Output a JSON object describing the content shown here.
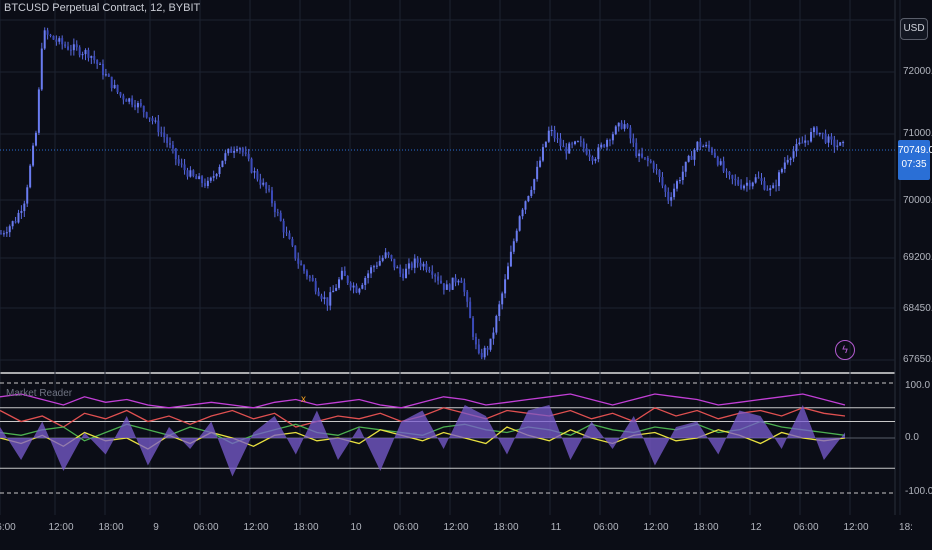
{
  "chart_data": [
    {
      "type": "candlestick",
      "title": "BTCUSD Perpetual Contract, 12, BYBIT",
      "currency": "USD",
      "current_price": "70749.0",
      "countdown": "07:35",
      "y_ticks": [
        "72000.0",
        "71000.0",
        "70000.0",
        "69200.0",
        "68450.0",
        "67650.0"
      ],
      "x_ticks": [
        "6:00",
        "12:00",
        "18:00",
        "9",
        "06:00",
        "12:00",
        "18:00",
        "10",
        "06:00",
        "12:00",
        "18:00",
        "11",
        "06:00",
        "12:00",
        "18:00",
        "12",
        "06:00",
        "12:00",
        "18:"
      ],
      "ylim": [
        67500,
        72700
      ],
      "path_points": [
        [
          0,
          69500
        ],
        [
          5,
          69700
        ],
        [
          8,
          70000
        ],
        [
          12,
          71000
        ],
        [
          14,
          72400
        ],
        [
          18,
          72300
        ],
        [
          22,
          72200
        ],
        [
          30,
          72100
        ],
        [
          35,
          71800
        ],
        [
          40,
          71500
        ],
        [
          45,
          71400
        ],
        [
          50,
          71200
        ],
        [
          55,
          70900
        ],
        [
          60,
          70500
        ],
        [
          65,
          70300
        ],
        [
          70,
          70200
        ],
        [
          75,
          70600
        ],
        [
          80,
          70800
        ],
        [
          85,
          70400
        ],
        [
          90,
          70100
        ],
        [
          95,
          69600
        ],
        [
          100,
          69100
        ],
        [
          105,
          68800
        ],
        [
          110,
          68500
        ],
        [
          115,
          68900
        ],
        [
          120,
          68700
        ],
        [
          125,
          69000
        ],
        [
          130,
          69200
        ],
        [
          135,
          68900
        ],
        [
          140,
          69100
        ],
        [
          145,
          69000
        ],
        [
          150,
          68700
        ],
        [
          155,
          68900
        ],
        [
          158,
          68300
        ],
        [
          161,
          67700
        ],
        [
          165,
          67900
        ],
        [
          170,
          68800
        ],
        [
          175,
          69800
        ],
        [
          180,
          70300
        ],
        [
          185,
          71000
        ],
        [
          190,
          70700
        ],
        [
          195,
          70800
        ],
        [
          200,
          70600
        ],
        [
          205,
          70900
        ],
        [
          210,
          71100
        ],
        [
          215,
          70600
        ],
        [
          220,
          70500
        ],
        [
          225,
          70000
        ],
        [
          230,
          70400
        ],
        [
          235,
          70800
        ],
        [
          240,
          70700
        ],
        [
          245,
          70300
        ],
        [
          250,
          70200
        ],
        [
          255,
          70300
        ],
        [
          260,
          70100
        ],
        [
          265,
          70600
        ],
        [
          270,
          70800
        ],
        [
          275,
          71000
        ],
        [
          280,
          70800
        ],
        [
          285,
          70750
        ]
      ]
    },
    {
      "type": "line",
      "title": "Market Reader",
      "y_ticks": [
        "100.0",
        "0.0",
        "-100.0"
      ],
      "ylim": [
        -110,
        110
      ],
      "series": [
        {
          "color": "#c23fd6",
          "values": [
            75,
            80,
            70,
            60,
            75,
            65,
            70,
            60,
            55,
            60,
            65,
            60,
            55,
            65,
            70,
            60,
            65,
            70,
            60,
            55,
            65,
            75,
            70,
            60,
            65,
            70,
            75,
            80,
            70,
            60,
            70,
            80,
            75,
            70,
            60,
            65,
            70,
            75,
            80,
            70,
            60
          ]
        },
        {
          "color": "#e05050",
          "values": [
            50,
            30,
            40,
            20,
            45,
            35,
            50,
            30,
            40,
            25,
            40,
            50,
            35,
            45,
            20,
            30,
            40,
            35,
            45,
            30,
            40,
            55,
            45,
            35,
            50,
            45,
            40,
            50,
            35,
            45,
            30,
            55,
            40,
            50,
            35,
            45,
            50,
            40,
            55,
            45,
            40
          ]
        },
        {
          "color": "#4caf50",
          "values": [
            10,
            5,
            15,
            20,
            -5,
            10,
            25,
            15,
            5,
            20,
            10,
            -10,
            5,
            15,
            25,
            10,
            5,
            20,
            15,
            10,
            5,
            20,
            25,
            15,
            10,
            20,
            15,
            5,
            25,
            15,
            10,
            20,
            15,
            25,
            10,
            15,
            30,
            20,
            15,
            10,
            5
          ]
        },
        {
          "color": "#e8e040",
          "values": [
            0,
            -10,
            5,
            -15,
            10,
            -5,
            0,
            -20,
            5,
            -10,
            10,
            0,
            -15,
            5,
            10,
            -5,
            0,
            -10,
            15,
            5,
            -5,
            10,
            0,
            -10,
            20,
            5,
            -5,
            15,
            0,
            -10,
            5,
            10,
            -5,
            0,
            15,
            5,
            -10,
            10,
            0,
            -5,
            0
          ]
        },
        {
          "color": "#7a5cd0",
          "values": [
            20,
            -40,
            30,
            -60,
            10,
            -30,
            40,
            -50,
            20,
            -20,
            30,
            -70,
            10,
            40,
            -30,
            50,
            -40,
            20,
            -60,
            30,
            50,
            -20,
            60,
            40,
            -30,
            50,
            60,
            -40,
            30,
            -20,
            40,
            -50,
            20,
            30,
            -30,
            50,
            40,
            -20,
            60,
            -40,
            10
          ]
        }
      ]
    }
  ]
}
